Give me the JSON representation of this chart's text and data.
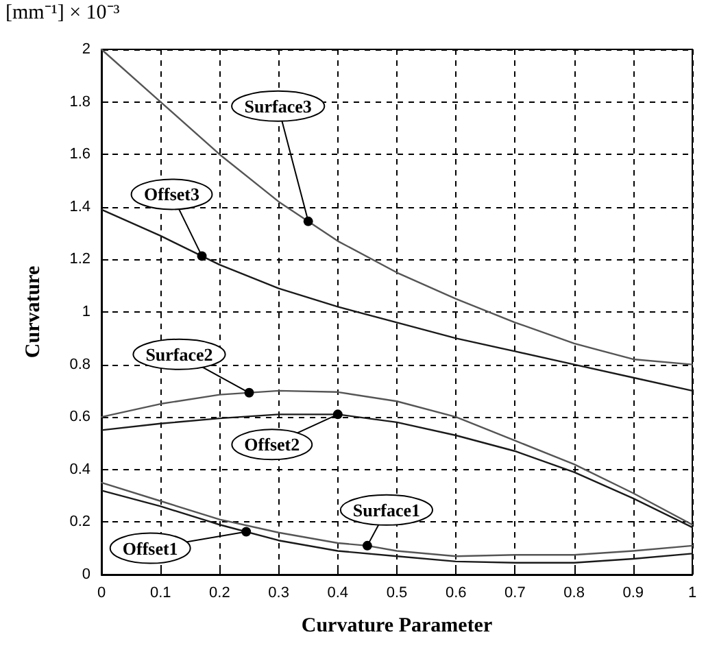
{
  "chart_data": {
    "type": "line",
    "xlabel": "Curvature Parameter",
    "ylabel": "Curvature",
    "annotations": [
      "[mm⁻¹] × 10⁻³"
    ],
    "x": [
      0,
      0.1,
      0.2,
      0.3,
      0.4,
      0.5,
      0.6,
      0.7,
      0.8,
      0.9,
      1.0
    ],
    "series": [
      {
        "name": "Surface3",
        "color": "#555555",
        "values": [
          2.0,
          1.8,
          1.6,
          1.42,
          1.27,
          1.15,
          1.05,
          0.96,
          0.88,
          0.82,
          0.8
        ]
      },
      {
        "name": "Offset3",
        "color": "#1a1a1a",
        "values": [
          1.39,
          1.29,
          1.18,
          1.09,
          1.02,
          0.96,
          0.9,
          0.85,
          0.8,
          0.75,
          0.7
        ]
      },
      {
        "name": "Surface2",
        "color": "#555555",
        "values": [
          0.6,
          0.65,
          0.685,
          0.7,
          0.695,
          0.66,
          0.6,
          0.51,
          0.42,
          0.31,
          0.19
        ]
      },
      {
        "name": "Offset2",
        "color": "#1a1a1a",
        "values": [
          0.55,
          0.575,
          0.595,
          0.61,
          0.61,
          0.58,
          0.53,
          0.47,
          0.39,
          0.29,
          0.18
        ]
      },
      {
        "name": "Surface1",
        "color": "#555555",
        "x": [
          0,
          0.1,
          0.2,
          0.3,
          0.4,
          0.45,
          0.5,
          0.6,
          0.7,
          0.8,
          0.9,
          1.0
        ],
        "values": [
          0.35,
          0.28,
          0.21,
          0.16,
          0.12,
          0.11,
          0.09,
          0.07,
          0.075,
          0.075,
          0.09,
          0.11
        ]
      },
      {
        "name": "Offset1",
        "color": "#1a1a1a",
        "values": [
          0.32,
          0.26,
          0.19,
          0.13,
          0.09,
          0.07,
          0.05,
          0.045,
          0.045,
          0.06,
          0.08
        ]
      }
    ],
    "xlim": [
      0,
      1
    ],
    "xticks": [
      0,
      0.1,
      0.2,
      0.3,
      0.4,
      0.5,
      0.6,
      0.7,
      0.8,
      0.9,
      1
    ],
    "ylim": [
      0,
      2
    ],
    "yticks": [
      0,
      0.2,
      0.4,
      0.6,
      0.8,
      1,
      1.2,
      1.4,
      1.6,
      1.8,
      2
    ],
    "grid": true,
    "marker": "none",
    "line_style": "solid",
    "legend": false
  }
}
